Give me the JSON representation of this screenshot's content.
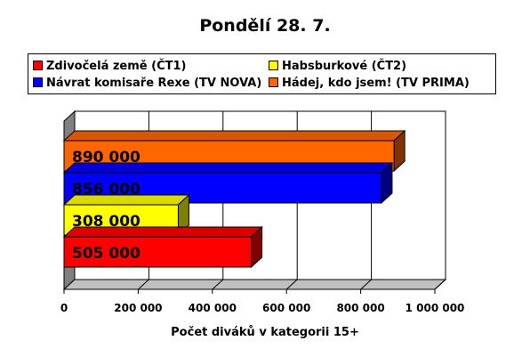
{
  "chart_data": {
    "type": "bar",
    "orientation": "horizontal",
    "title": "Pondělí 28. 7.",
    "xlabel": "Počet diváků v kategorii 15+",
    "ylabel": "",
    "xlim": [
      0,
      1000000
    ],
    "x_ticks": [
      "0",
      "200 000",
      "400 000",
      "600 000",
      "800 000",
      "1 000 000"
    ],
    "grid": true,
    "legend_position": "top",
    "series": [
      {
        "name": "Zdivočelá země (ČT1)",
        "value": 505000,
        "label": "505 000",
        "color": "#ff0000"
      },
      {
        "name": "Habsburkové (ČT2)",
        "value": 308000,
        "label": "308 000",
        "color": "#ffff00"
      },
      {
        "name": "Návrat komisaře Rexe (TV NOVA)",
        "value": 856000,
        "label": "856 000",
        "color": "#0000ff"
      },
      {
        "name": "Hádej, kdo jsem! (TV PRIMA)",
        "value": 890000,
        "label": "890 000",
        "color": "#ff6600"
      }
    ]
  }
}
